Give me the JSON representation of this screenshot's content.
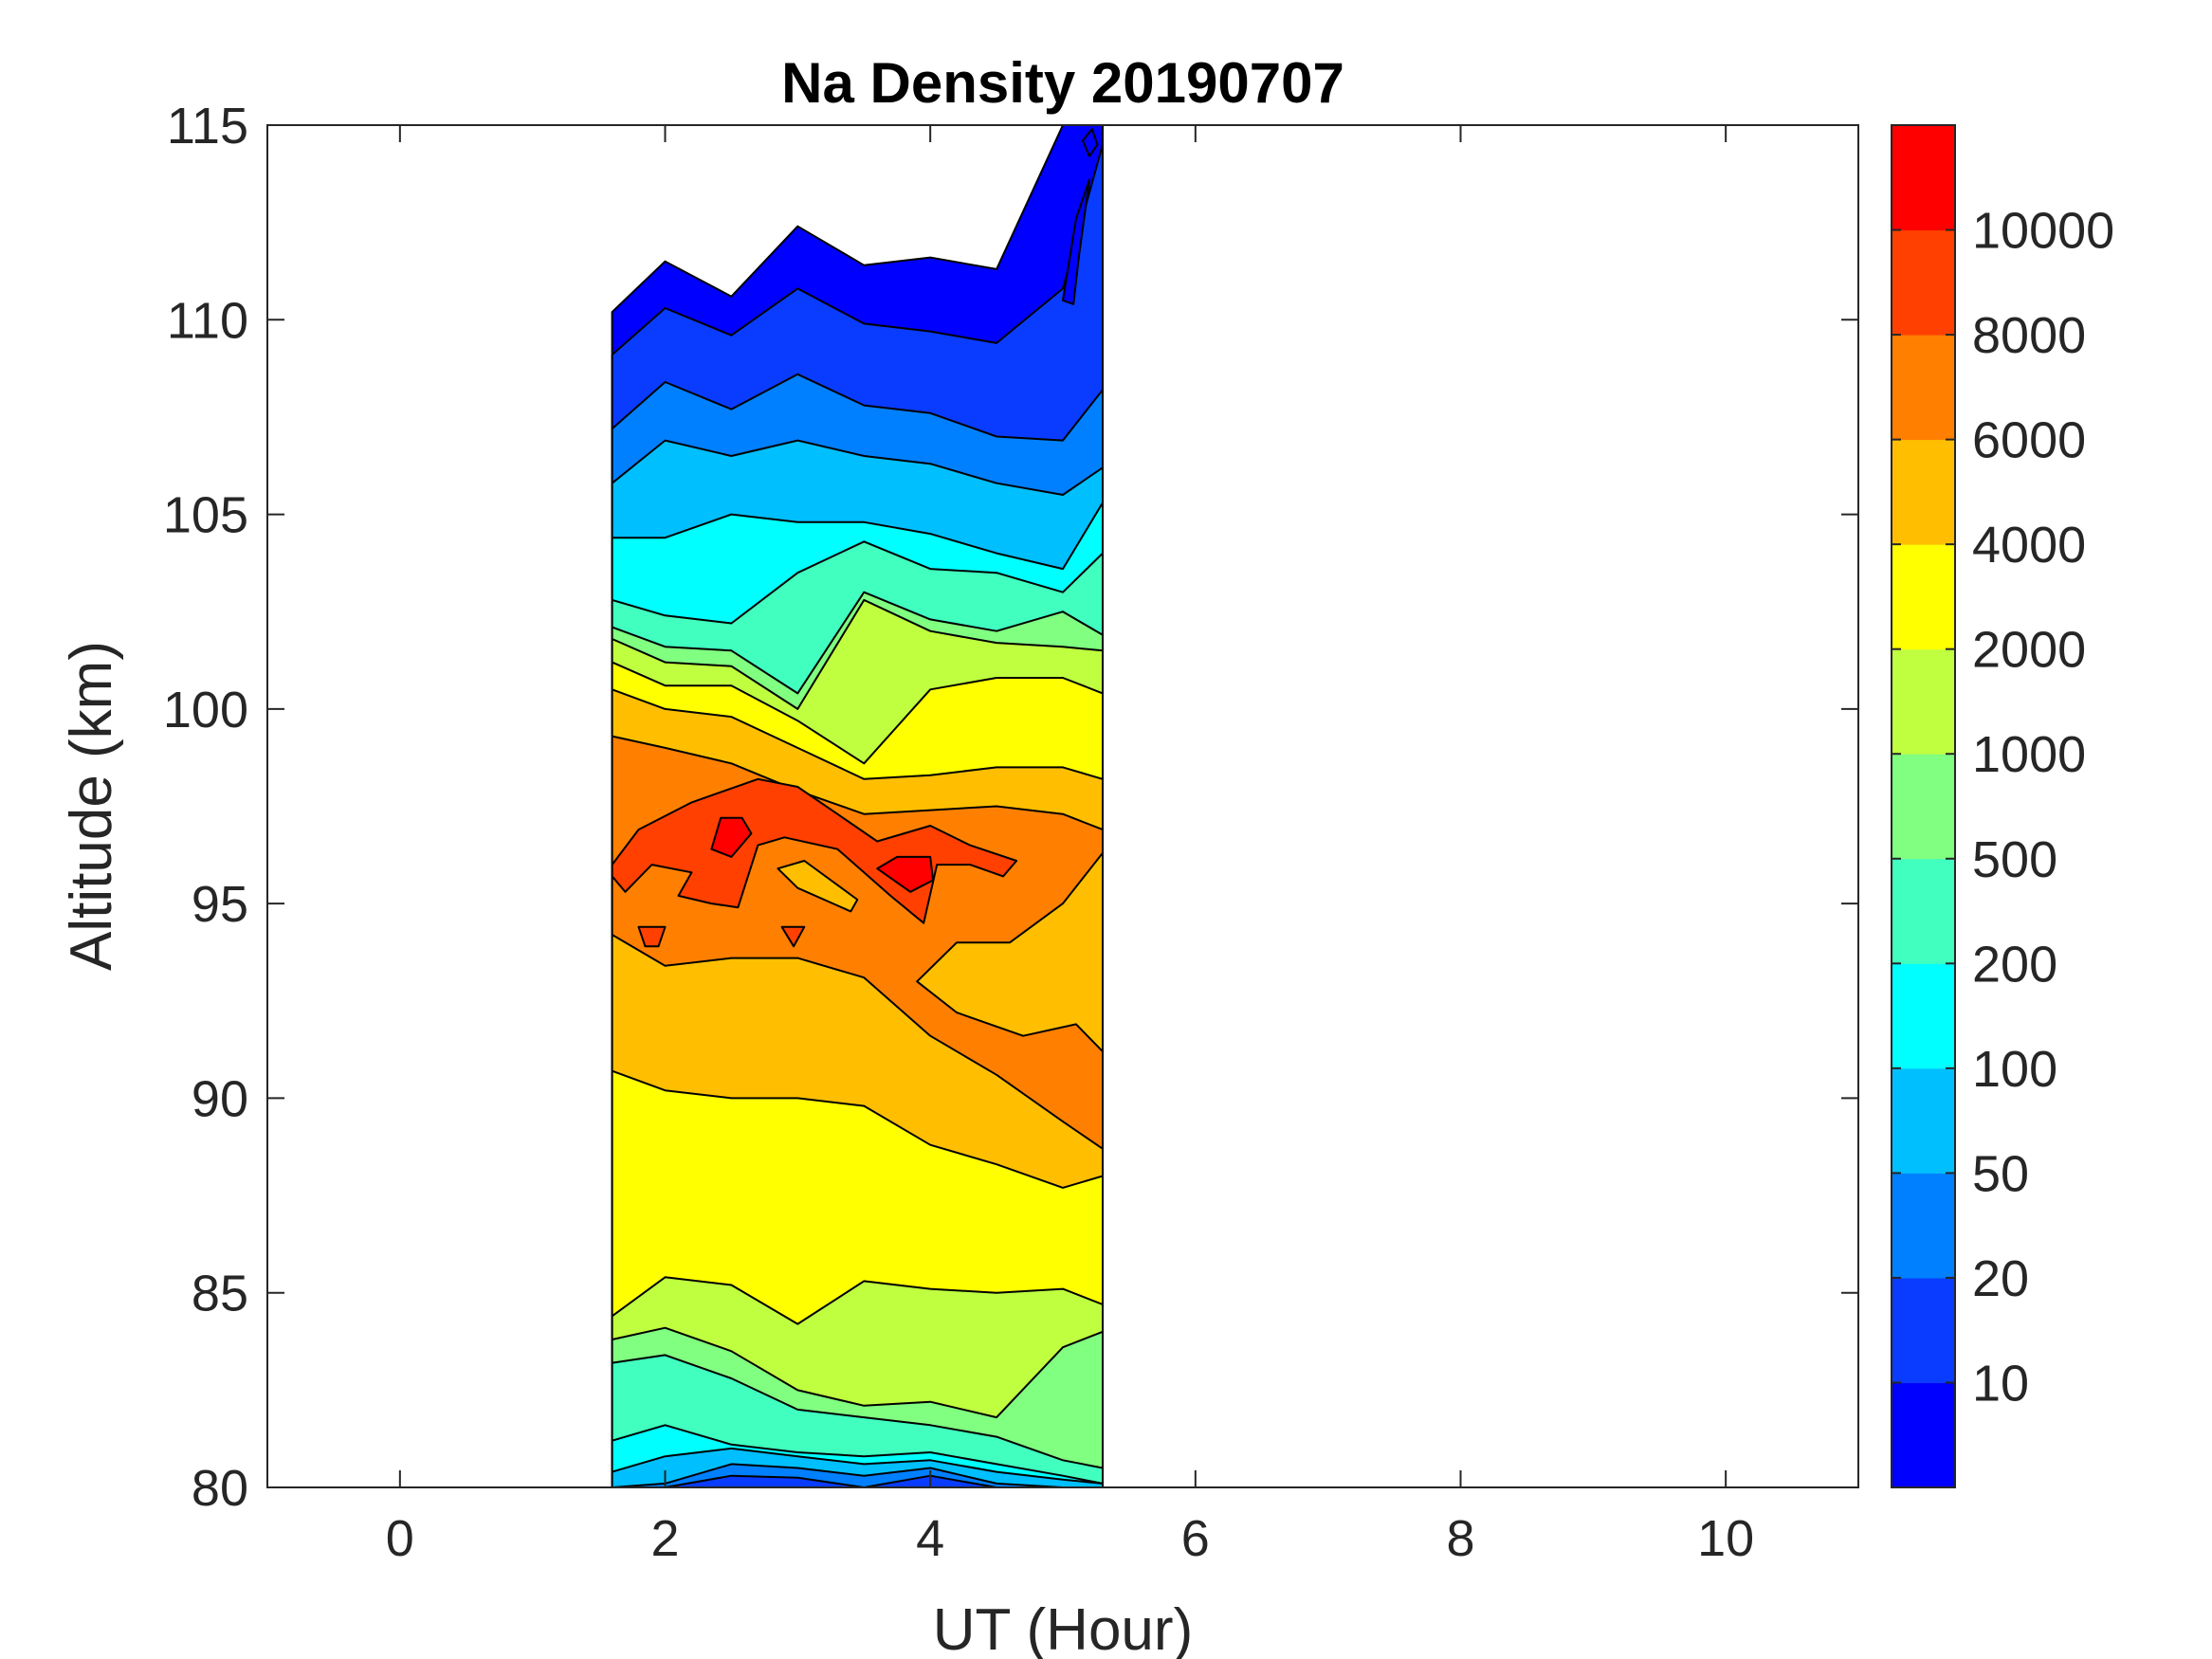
{
  "chart_data": {
    "type": "filled-contour",
    "title": "Na Density 20190707",
    "xlabel": "UT (Hour)",
    "ylabel": "Altitude (km)",
    "xlim": [
      -1,
      11
    ],
    "ylim": [
      80,
      115
    ],
    "xticks": [
      "0",
      "2",
      "4",
      "6",
      "8",
      "10"
    ],
    "xtick_values": [
      0,
      2,
      4,
      6,
      8,
      10
    ],
    "yticks": [
      "80",
      "85",
      "90",
      "95",
      "100",
      "105",
      "110",
      "115"
    ],
    "ytick_values": [
      80,
      85,
      90,
      95,
      100,
      105,
      110,
      115
    ],
    "grid": false,
    "colorbar": {
      "placement": "right",
      "levels": [
        10,
        20,
        50,
        100,
        200,
        500,
        1000,
        2000,
        4000,
        6000,
        8000,
        10000
      ],
      "labels": [
        "10",
        "20",
        "50",
        "100",
        "200",
        "500",
        "1000",
        "2000",
        "4000",
        "6000",
        "8000",
        "10000"
      ],
      "colors": [
        "#0000ff",
        "#0a3cff",
        "#0080ff",
        "#00bfff",
        "#00ffff",
        "#40ffbf",
        "#80ff80",
        "#bfff40",
        "#ffff00",
        "#ffbf00",
        "#ff8000",
        "#ff4000",
        "#ff0000"
      ]
    },
    "data_time_range": [
      1.6,
      5.3
    ],
    "t": [
      1.6,
      2.0,
      2.5,
      3.0,
      3.5,
      4.0,
      4.5,
      5.0,
      5.3
    ],
    "top_edge": [
      110.2,
      111.5,
      110.6,
      112.4,
      111.4,
      111.6,
      111.3,
      115.0,
      115.0
    ],
    "bands": [
      {
        "level": 10,
        "color_index": 1,
        "upper": [
          109.1,
          110.3,
          109.6,
          110.8,
          109.9,
          109.7,
          109.4,
          110.8,
          114.5
        ],
        "lower": [
          80,
          80,
          80,
          80,
          80,
          80,
          80,
          80,
          80
        ]
      },
      {
        "level": 20,
        "color_index": 2,
        "upper": [
          107.2,
          108.4,
          107.7,
          108.6,
          107.8,
          107.6,
          107.0,
          106.9,
          108.2
        ],
        "lower": [
          80,
          80,
          80.3,
          80.25,
          80,
          80.3,
          80,
          80,
          80
        ]
      },
      {
        "level": 50,
        "color_index": 3,
        "upper": [
          105.8,
          106.9,
          106.5,
          106.9,
          106.5,
          106.3,
          105.8,
          105.5,
          106.2
        ],
        "lower": [
          80,
          80.1,
          80.6,
          80.5,
          80.3,
          80.5,
          80.1,
          80,
          80
        ]
      },
      {
        "level": 100,
        "color_index": 4,
        "upper": [
          104.4,
          104.4,
          105.0,
          104.8,
          104.8,
          104.5,
          104.0,
          103.6,
          105.3
        ],
        "lower": [
          80.4,
          80.8,
          81.0,
          80.8,
          80.6,
          80.7,
          80.4,
          80.2,
          80.1
        ]
      },
      {
        "level": 200,
        "color_index": 5,
        "upper": [
          102.8,
          102.4,
          102.2,
          103.5,
          104.3,
          103.6,
          103.5,
          103.0,
          104.0
        ],
        "lower": [
          81.2,
          81.6,
          81.1,
          80.9,
          80.8,
          80.9,
          80.6,
          80.3,
          80.1
        ]
      },
      {
        "level": 500,
        "color_index": 6,
        "upper": [
          102.1,
          101.6,
          101.5,
          100.4,
          103.0,
          102.3,
          102.0,
          102.5,
          101.9
        ],
        "lower": [
          83.2,
          83.4,
          82.8,
          82.0,
          81.8,
          81.6,
          81.3,
          80.7,
          80.5
        ]
      },
      {
        "level": 1000,
        "color_index": 7,
        "upper": [
          101.8,
          101.2,
          101.1,
          100.0,
          102.8,
          102.0,
          101.7,
          101.6,
          101.5
        ],
        "lower": [
          83.8,
          84.1,
          83.5,
          82.5,
          82.1,
          82.2,
          81.8,
          83.6,
          84.0
        ]
      },
      {
        "level": 2000,
        "color_index": 8,
        "upper": [
          101.2,
          100.6,
          100.6,
          99.7,
          98.6,
          100.5,
          100.8,
          100.8,
          100.4
        ],
        "lower": [
          84.4,
          85.4,
          85.2,
          84.2,
          85.3,
          85.1,
          85.0,
          85.1,
          84.7
        ]
      },
      {
        "level": 4000,
        "color_index": 9,
        "upper": [
          100.5,
          100.0,
          99.8,
          99.0,
          98.2,
          98.3,
          98.5,
          98.5,
          98.2
        ],
        "lower": [
          90.7,
          90.2,
          90.0,
          90.0,
          89.8,
          88.8,
          88.3,
          87.7,
          88.0
        ]
      },
      {
        "level": 6000,
        "color_index": 10,
        "upper": [
          99.3,
          99.0,
          98.6,
          97.9,
          97.3,
          97.4,
          97.5,
          97.3,
          96.9
        ],
        "lower": [
          94.2,
          93.4,
          93.6,
          93.6,
          93.1,
          91.6,
          90.6,
          89.4,
          88.7
        ]
      }
    ],
    "patches": [
      {
        "level": 4000,
        "color_index": 9,
        "points": [
          [
            3.9,
            93.0
          ],
          [
            4.2,
            94.0
          ],
          [
            4.6,
            94.0
          ],
          [
            5.0,
            95.0
          ],
          [
            5.3,
            96.3
          ],
          [
            5.3,
            91.2
          ],
          [
            5.1,
            91.9
          ],
          [
            4.7,
            91.6
          ],
          [
            4.2,
            92.2
          ]
        ]
      },
      {
        "level": 8000,
        "color_index": 11,
        "points": [
          [
            1.6,
            96.0
          ],
          [
            1.8,
            96.9
          ],
          [
            2.2,
            97.6
          ],
          [
            2.7,
            98.2
          ],
          [
            3.0,
            98.0
          ],
          [
            3.3,
            97.3
          ],
          [
            3.6,
            96.6
          ],
          [
            4.0,
            97.0
          ],
          [
            4.3,
            96.5
          ],
          [
            4.65,
            96.1
          ],
          [
            4.55,
            95.7
          ],
          [
            4.3,
            96.0
          ],
          [
            4.05,
            96.0
          ],
          [
            3.95,
            94.5
          ],
          [
            3.7,
            95.2
          ],
          [
            3.3,
            96.4
          ],
          [
            2.9,
            96.7
          ],
          [
            2.7,
            96.5
          ],
          [
            2.55,
            94.9
          ],
          [
            2.35,
            95.0
          ],
          [
            2.1,
            95.2
          ],
          [
            2.2,
            95.8
          ],
          [
            1.9,
            96.0
          ],
          [
            1.7,
            95.3
          ],
          [
            1.6,
            95.7
          ]
        ]
      },
      {
        "level": 4000,
        "color_index": 9,
        "points": [
          [
            2.85,
            95.9
          ],
          [
            3.05,
            96.1
          ],
          [
            3.45,
            95.1
          ],
          [
            3.4,
            94.8
          ],
          [
            3.0,
            95.4
          ]
        ]
      },
      {
        "level": 8000,
        "color_index": 11,
        "points": [
          [
            1.8,
            94.4
          ],
          [
            2.0,
            94.4
          ],
          [
            1.95,
            93.9
          ],
          [
            1.85,
            93.9
          ]
        ]
      },
      {
        "level": 8000,
        "color_index": 11,
        "points": [
          [
            2.88,
            94.4
          ],
          [
            3.05,
            94.4
          ],
          [
            2.97,
            93.9
          ]
        ]
      },
      {
        "level": 10000,
        "color_index": 12,
        "points": [
          [
            2.35,
            96.4
          ],
          [
            2.42,
            97.2
          ],
          [
            2.58,
            97.2
          ],
          [
            2.65,
            96.8
          ],
          [
            2.5,
            96.2
          ]
        ]
      },
      {
        "level": 10000,
        "color_index": 12,
        "points": [
          [
            3.6,
            95.9
          ],
          [
            3.75,
            96.2
          ],
          [
            4.0,
            96.2
          ],
          [
            4.02,
            95.6
          ],
          [
            3.85,
            95.3
          ]
        ]
      },
      {
        "level": 0,
        "color_index": 0,
        "points": [
          [
            5.0,
            110.5
          ],
          [
            5.1,
            112.6
          ],
          [
            5.2,
            113.6
          ],
          [
            5.12,
            111.6
          ],
          [
            5.08,
            110.4
          ]
        ]
      },
      {
        "level": 0,
        "color_index": 0,
        "points": [
          [
            5.15,
            114.6
          ],
          [
            5.22,
            114.9
          ],
          [
            5.26,
            114.5
          ],
          [
            5.2,
            114.2
          ]
        ]
      }
    ]
  }
}
